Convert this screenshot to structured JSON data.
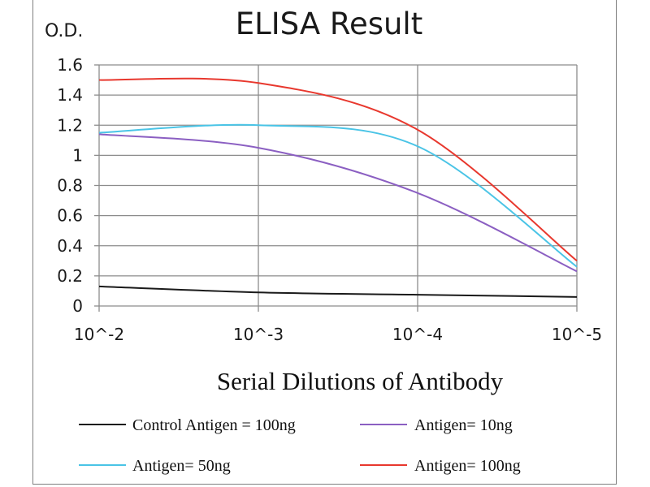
{
  "chart_data": {
    "type": "line",
    "title": "ELISA Result",
    "ylabel": "O.D.",
    "xlabel": "Serial Dilutions  of Antibody",
    "x_ticks": [
      "10^-2",
      "10^-3",
      "10^-4",
      "10^-5"
    ],
    "y_ticks": [
      "0",
      "0.2",
      "0.4",
      "0.6",
      "0.8",
      "1",
      "1.2",
      "1.4",
      "1.6"
    ],
    "ylim": [
      0,
      1.6
    ],
    "x_scale": "log",
    "x_dilutions": [
      0.01,
      0.001,
      0.0001,
      1e-05
    ],
    "grid": true,
    "legend_position": "bottom",
    "series": [
      {
        "name": "Control Antigen = 100ng",
        "color": "#1a1a1a",
        "x": [
          0.01,
          0.001,
          0.0001,
          1e-05
        ],
        "values": [
          0.13,
          0.09,
          0.075,
          0.06
        ]
      },
      {
        "name": "Antigen= 10ng",
        "color": "#8b5fc2",
        "x": [
          0.01,
          0.001,
          0.0001,
          1e-05
        ],
        "values": [
          1.14,
          1.05,
          0.75,
          0.23
        ]
      },
      {
        "name": "Antigen= 50ng",
        "color": "#4ac4e6",
        "x": [
          0.01,
          0.001,
          0.0001,
          1e-05
        ],
        "values": [
          1.15,
          1.2,
          1.06,
          0.26
        ]
      },
      {
        "name": "Antigen= 100ng",
        "color": "#e8382e",
        "x": [
          0.01,
          0.001,
          0.0001,
          1e-05
        ],
        "values": [
          1.5,
          1.48,
          1.17,
          0.3
        ]
      }
    ]
  }
}
